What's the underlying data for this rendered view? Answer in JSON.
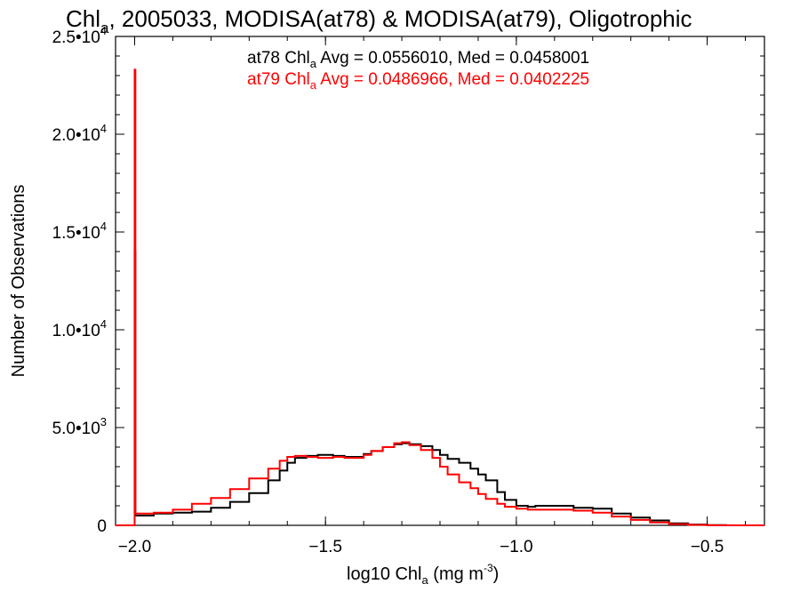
{
  "chart_data": {
    "type": "line",
    "title_main": "Chl",
    "title_sub": "a",
    "title_rest": ", 2005033, MODISA(at78) & MODISA(at79), Oligotrophic",
    "xlabel_main": "log10 Chl",
    "xlabel_sub": "a",
    "xlabel_units": " (mg m",
    "xlabel_sup": "-3",
    "xlabel_close": ")",
    "ylabel": "Number of Observations",
    "xlim": [
      -2.05,
      -0.35
    ],
    "ylim": [
      0,
      25000
    ],
    "x_ticks": [
      {
        "value": -2.0,
        "label": "−2.0"
      },
      {
        "value": -1.5,
        "label": "−1.5"
      },
      {
        "value": -1.0,
        "label": "−1.0"
      },
      {
        "value": -0.5,
        "label": "−0.5"
      }
    ],
    "y_ticks": [
      {
        "value": 0,
        "mant": "0",
        "exp": ""
      },
      {
        "value": 5000,
        "mant": "5.0•10",
        "exp": "3"
      },
      {
        "value": 10000,
        "mant": "1.0•10",
        "exp": "4"
      },
      {
        "value": 15000,
        "mant": "1.5•10",
        "exp": "4"
      },
      {
        "value": 20000,
        "mant": "2.0•10",
        "exp": "4"
      },
      {
        "value": 25000,
        "mant": "2.5•10",
        "exp": "4"
      }
    ],
    "legend": [
      {
        "pre": "at78 Chl",
        "sub": "a",
        "post": " Avg = 0.0556010, Med = 0.0458001",
        "color": "#000000"
      },
      {
        "pre": "at79 Chl",
        "sub": "a",
        "post": " Avg = 0.0486966, Med = 0.0402225",
        "color": "#ff0000"
      }
    ],
    "series": [
      {
        "color": "#000000",
        "x": [
          -2.05,
          -2.002,
          -2.0,
          -1.998,
          -1.95,
          -1.9,
          -1.85,
          -1.8,
          -1.75,
          -1.7,
          -1.65,
          -1.62,
          -1.6,
          -1.58,
          -1.55,
          -1.52,
          -1.5,
          -1.48,
          -1.45,
          -1.43,
          -1.4,
          -1.38,
          -1.35,
          -1.32,
          -1.3,
          -1.28,
          -1.25,
          -1.22,
          -1.2,
          -1.18,
          -1.15,
          -1.12,
          -1.1,
          -1.08,
          -1.05,
          -1.03,
          -1.0,
          -0.97,
          -0.95,
          -0.9,
          -0.85,
          -0.8,
          -0.75,
          -0.7,
          -0.65,
          -0.6,
          -0.55,
          -0.5,
          -0.45,
          -0.4,
          -0.35
        ],
        "y": [
          0,
          0,
          14000,
          500,
          600,
          650,
          700,
          900,
          1200,
          1650,
          2300,
          2800,
          3200,
          3450,
          3550,
          3600,
          3600,
          3550,
          3500,
          3500,
          3650,
          3800,
          4000,
          4150,
          4200,
          4150,
          4050,
          3850,
          3600,
          3400,
          3200,
          2900,
          2600,
          2300,
          1700,
          1300,
          1000,
          950,
          1000,
          1000,
          900,
          850,
          600,
          400,
          250,
          100,
          40,
          10,
          0,
          0,
          0
        ]
      },
      {
        "color": "#ff0000",
        "x": [
          -2.05,
          -2.002,
          -2.0,
          -1.998,
          -1.95,
          -1.9,
          -1.85,
          -1.8,
          -1.75,
          -1.7,
          -1.65,
          -1.62,
          -1.6,
          -1.58,
          -1.55,
          -1.52,
          -1.5,
          -1.48,
          -1.45,
          -1.43,
          -1.4,
          -1.38,
          -1.35,
          -1.32,
          -1.3,
          -1.28,
          -1.25,
          -1.22,
          -1.2,
          -1.18,
          -1.15,
          -1.12,
          -1.1,
          -1.08,
          -1.05,
          -1.03,
          -1.0,
          -0.97,
          -0.95,
          -0.9,
          -0.85,
          -0.8,
          -0.75,
          -0.7,
          -0.65,
          -0.6,
          -0.55,
          -0.5,
          -0.45,
          -0.4,
          -0.35
        ],
        "y": [
          0,
          0,
          23300,
          600,
          650,
          800,
          1100,
          1400,
          1850,
          2400,
          2900,
          3300,
          3500,
          3550,
          3500,
          3450,
          3450,
          3500,
          3450,
          3450,
          3600,
          3800,
          4000,
          4200,
          4250,
          4100,
          3850,
          3450,
          3000,
          2600,
          2200,
          1900,
          1600,
          1350,
          1100,
          950,
          850,
          800,
          800,
          800,
          750,
          650,
          450,
          280,
          150,
          60,
          20,
          5,
          0,
          0,
          0
        ]
      }
    ]
  }
}
